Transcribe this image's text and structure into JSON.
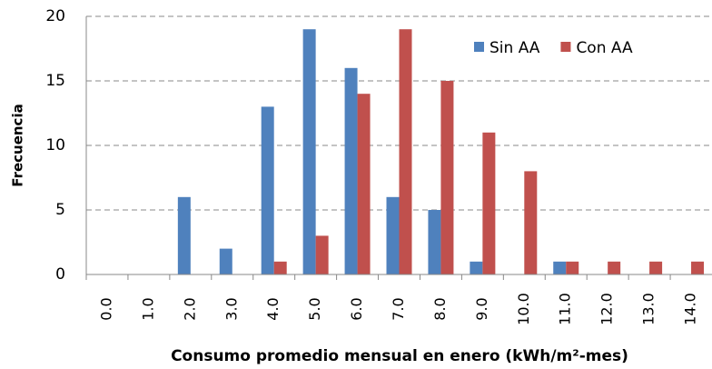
{
  "chart_data": {
    "type": "bar",
    "x_label": "Consumo promedio mensual en enero (kWh/m²-mes)",
    "y_label": "Frecuencia",
    "categories": [
      "0.0",
      "1.0",
      "2.0",
      "3.0",
      "4.0",
      "5.0",
      "6.0",
      "7.0",
      "8.0",
      "9.0",
      "10.0",
      "11.0",
      "12.0",
      "13.0",
      "14.0"
    ],
    "series": [
      {
        "name": "Sin AA",
        "color": "#4f81bd",
        "values": [
          0,
          0,
          6,
          2,
          13,
          19,
          16,
          6,
          5,
          1,
          0,
          1,
          0,
          0,
          0
        ]
      },
      {
        "name": "Con AA",
        "color": "#c0504d",
        "values": [
          0,
          0,
          0,
          0,
          1,
          3,
          14,
          19,
          15,
          11,
          8,
          1,
          1,
          1,
          1
        ]
      }
    ],
    "ylim": [
      0,
      20
    ],
    "yticks": [
      0,
      5,
      10,
      15,
      20
    ],
    "grid": true,
    "legend": "upper right"
  }
}
